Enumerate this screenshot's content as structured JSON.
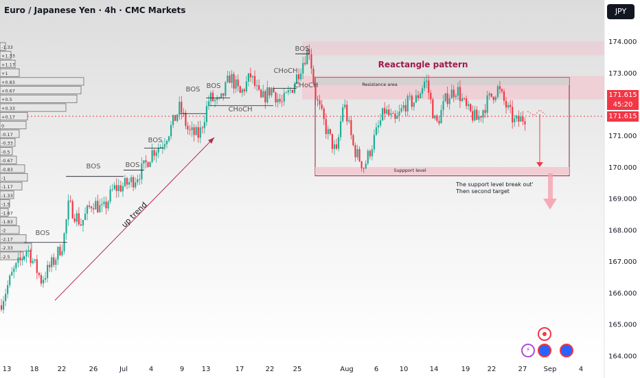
{
  "header": {
    "title": "Euro / Japanese Yen · 4h · CMC Markets",
    "currency": "JPY"
  },
  "price_tags": {
    "top": "171.615",
    "countdown": "45:20",
    "last": "171.615"
  },
  "chart_data": {
    "type": "candlestick",
    "y_ticks": [
      "174.000",
      "173.000",
      "172.000",
      "171.000",
      "170.000",
      "169.000",
      "168.000",
      "167.000",
      "166.000",
      "165.000",
      "164.000"
    ],
    "y_range": [
      163.9,
      174.7
    ],
    "x_ticks": [
      "13",
      "18",
      "22",
      "26",
      "Jul",
      "4",
      "9",
      "13",
      "17",
      "22",
      "25",
      "Aug",
      "6",
      "10",
      "14",
      "19",
      "22",
      "27",
      "Sep",
      "4"
    ],
    "last_price": 171.615,
    "path_points": [
      [
        0,
        165.6
      ],
      [
        18,
        166.6
      ],
      [
        40,
        167.4
      ],
      [
        60,
        166.4
      ],
      [
        78,
        167.0
      ],
      [
        92,
        167.6
      ],
      [
        100,
        168.8
      ],
      [
        118,
        168.2
      ],
      [
        135,
        168.9
      ],
      [
        150,
        168.6
      ],
      [
        165,
        169.3
      ],
      [
        180,
        169.4
      ],
      [
        195,
        169.6
      ],
      [
        210,
        170.0
      ],
      [
        222,
        170.5
      ],
      [
        235,
        170.7
      ],
      [
        250,
        171.3
      ],
      [
        262,
        171.9
      ],
      [
        275,
        171.1
      ],
      [
        290,
        171.0
      ],
      [
        305,
        172.2
      ],
      [
        320,
        172.0
      ],
      [
        335,
        172.9
      ],
      [
        350,
        172.3
      ],
      [
        365,
        172.9
      ],
      [
        380,
        172.1
      ],
      [
        395,
        172.5
      ],
      [
        410,
        172.0
      ],
      [
        425,
        172.5
      ],
      [
        440,
        173.3
      ],
      [
        450,
        173.8
      ],
      [
        460,
        172.2
      ],
      [
        475,
        171.2
      ],
      [
        490,
        170.4
      ],
      [
        500,
        172.1
      ],
      [
        515,
        170.6
      ],
      [
        530,
        170.0
      ],
      [
        545,
        170.9
      ],
      [
        560,
        171.8
      ],
      [
        575,
        171.4
      ],
      [
        590,
        172.0
      ],
      [
        605,
        172.1
      ],
      [
        620,
        172.8
      ],
      [
        635,
        171.3
      ],
      [
        650,
        172.2
      ],
      [
        665,
        172.5
      ],
      [
        680,
        171.8
      ],
      [
        695,
        171.5
      ],
      [
        710,
        172.1
      ],
      [
        725,
        172.5
      ],
      [
        740,
        171.8
      ],
      [
        750,
        171.4
      ],
      [
        765,
        171.6
      ]
    ],
    "annotations": {
      "bos_labels": [
        "BOS",
        "BOS",
        "BOS",
        "BOS",
        "BOS",
        "BOS",
        "BOS",
        "BOS"
      ],
      "choch_labels": [
        "CHoCH",
        "CHoCH",
        "CHoCH"
      ],
      "pattern_title": "Reactangle pattern",
      "resistance_label": "Resistance area",
      "support_label": "Suppport level",
      "uptrend_label": "up trend",
      "note_line1": "The support level break out'",
      "note_line2": "Then second target"
    },
    "volume_profile": [
      "-1.33",
      "+1.33",
      "+1.17",
      "+1",
      "+0.83",
      "+0.67",
      "+0.5",
      "+0.33",
      "+0.17",
      "0",
      "-0.17",
      "-0.33",
      "-0.5",
      "-0.67",
      "-0.83",
      "-1",
      "-1.17",
      "-1.33",
      "-1.5",
      "-1.67",
      "-1.83",
      "-2",
      "-2.17",
      "-2.33",
      "-2.5"
    ]
  },
  "colors": {
    "bull": "#22ab94",
    "bear": "#f23645",
    "zone": "#f5c2cb",
    "box_stroke": "#8a1a3a",
    "pattern_text": "#a01948"
  }
}
